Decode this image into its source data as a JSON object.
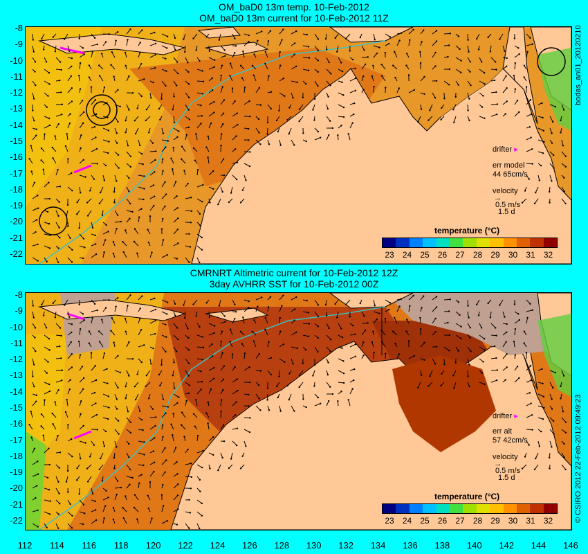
{
  "top_panel": {
    "title_line1": "OM_baD0 13m temp. 10-Feb-2012",
    "title_line2": "OM_baD0 13m current for 10-Feb-2012 11Z",
    "legend": {
      "drifter": "drifter",
      "err_label": "err model",
      "err_value": "44 65cm/s",
      "velocity": "velocity",
      "speed": "0.5 m/s",
      "days": "1.5 d"
    },
    "colorbar_title": "temperature (°C)",
    "side_text": "bodas_an01_20120210"
  },
  "bottom_panel": {
    "title_line1": "CMRNRT Altimetric current for 10-Feb-2012 12Z",
    "title_line2": "3day AVHRR SST for 10-Feb-2012 00Z",
    "legend": {
      "drifter": "drifter",
      "err_label": "err alt",
      "err_value": "57 42cm/s",
      "velocity": "velocity",
      "speed": "0.5 m/s",
      "days": "1.5 d"
    },
    "colorbar_title": "temperature (°C)",
    "side_text": "© CSIRO 2012  22-Feb-2012 09:49:23"
  },
  "lat_ticks": [
    "-8",
    "-9",
    "-10",
    "-11",
    "-12",
    "-13",
    "-14",
    "-15",
    "-16",
    "-17",
    "-18",
    "-19",
    "-20",
    "-21",
    "-22"
  ],
  "lon_ticks": [
    "112",
    "114",
    "116",
    "118",
    "120",
    "122",
    "124",
    "126",
    "128",
    "130",
    "132",
    "134",
    "136",
    "138",
    "140",
    "142",
    "144",
    "146"
  ],
  "colorbar": {
    "labels": [
      "23",
      "24",
      "25",
      "26",
      "27",
      "28",
      "29",
      "30",
      "31",
      "32"
    ],
    "colors": [
      "#000080",
      "#0030c0",
      "#0080ff",
      "#00c0ff",
      "#00e0c0",
      "#40e040",
      "#a0e000",
      "#e0e000",
      "#ffc000",
      "#ff9000",
      "#e06000",
      "#c03000",
      "#900000"
    ]
  },
  "colors": {
    "background": "#00ffff",
    "land": "#ffc896",
    "warm_sea": "#e89020",
    "cool_sea": "#f0b000",
    "hot_sea": "#b03800",
    "isobath": "#40c0c0",
    "drifter": "#ff00ff",
    "cloud": "#c0a090"
  }
}
